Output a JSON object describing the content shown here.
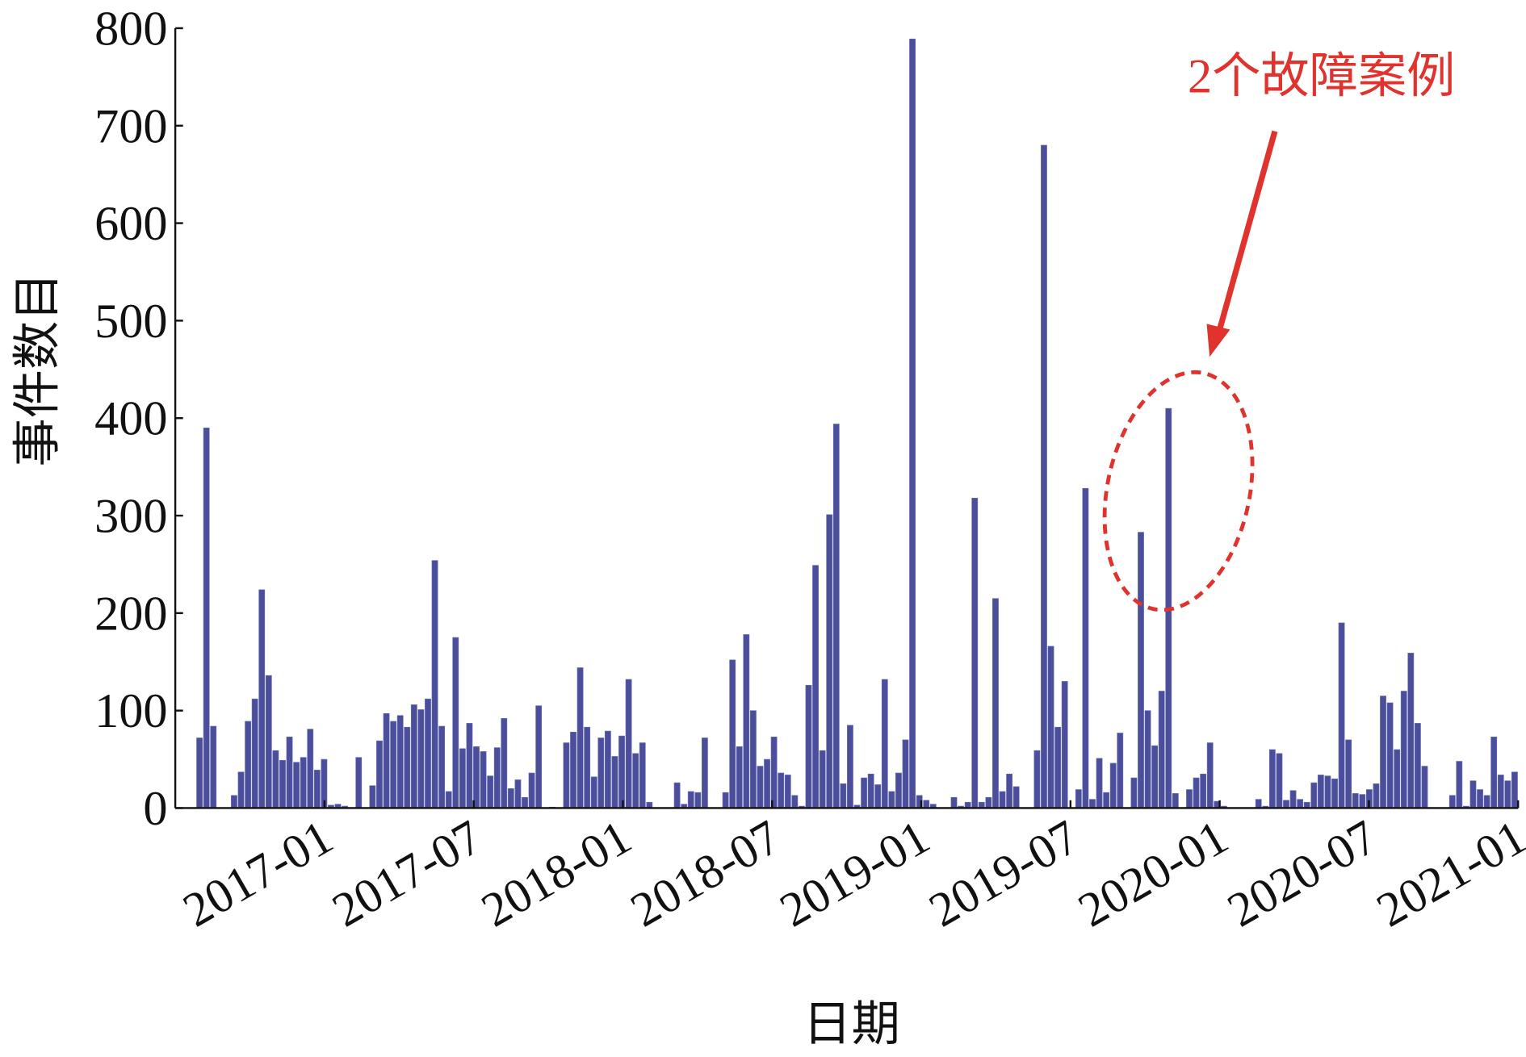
{
  "chart_data": {
    "type": "bar",
    "x_label": "日期",
    "y_label": "事件数目",
    "annotation": "2个故障案例",
    "color": "#4b4f9b",
    "xlim": [
      "2016-07",
      "2021-01"
    ],
    "xticks": [
      "2017-01",
      "2017-07",
      "2018-01",
      "2018-07",
      "2019-01",
      "2019-07",
      "2020-01",
      "2020-07",
      "2021-01"
    ],
    "ylim": [
      0,
      800
    ],
    "yticks": [
      0,
      100,
      200,
      300,
      400,
      500,
      600,
      700,
      800
    ],
    "values": [
      0,
      0,
      0,
      72,
      390,
      84,
      0,
      0,
      13,
      37,
      89,
      112,
      224,
      136,
      59,
      49,
      73,
      47,
      52,
      81,
      39,
      50,
      3,
      4,
      2,
      0,
      52,
      0,
      23,
      69,
      97,
      89,
      95,
      83,
      106,
      101,
      112,
      254,
      84,
      17,
      175,
      61,
      87,
      63,
      58,
      33,
      62,
      92,
      20,
      29,
      11,
      36,
      105,
      0,
      1,
      0,
      67,
      78,
      144,
      83,
      32,
      72,
      79,
      53,
      74,
      132,
      56,
      67,
      6,
      0,
      0,
      0,
      26,
      4,
      17,
      16,
      72,
      0,
      0,
      16,
      152,
      63,
      178,
      100,
      43,
      50,
      73,
      36,
      34,
      13,
      2,
      126,
      249,
      59,
      301,
      394,
      25,
      85,
      3,
      31,
      35,
      24,
      132,
      17,
      36,
      70,
      789,
      13,
      8,
      4,
      0,
      0,
      11,
      2,
      6,
      318,
      6,
      11,
      215,
      17,
      35,
      22,
      0,
      0,
      59,
      680,
      166,
      83,
      130,
      0,
      19,
      328,
      9,
      51,
      16,
      46,
      77,
      0,
      31,
      283,
      100,
      64,
      120,
      410,
      15,
      0,
      19,
      31,
      35,
      67,
      7,
      2,
      0,
      0,
      0,
      0,
      9,
      2,
      60,
      56,
      8,
      18,
      9,
      6,
      26,
      34,
      33,
      30,
      190,
      70,
      15,
      14,
      19,
      25,
      115,
      108,
      60,
      120,
      159,
      87,
      43,
      0,
      0,
      0,
      13,
      48,
      2,
      28,
      19,
      13,
      73,
      34,
      28,
      37
    ]
  }
}
